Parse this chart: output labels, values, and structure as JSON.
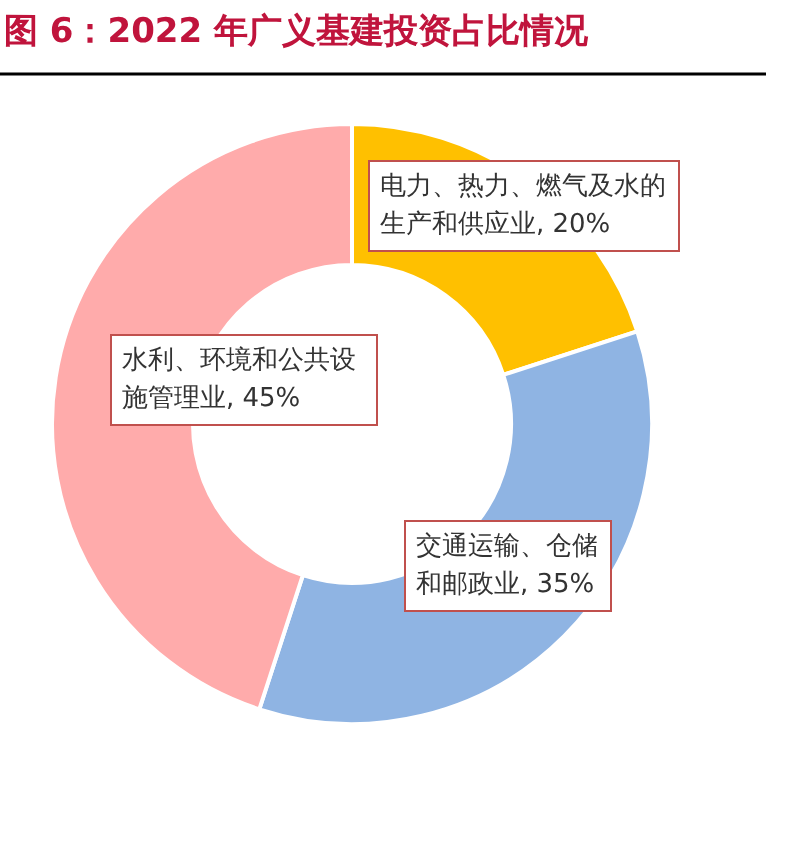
{
  "chart_data": {
    "type": "donut",
    "title": "图 6：2022 年广义基建投资占比情况",
    "categories": [
      "电力、热力、燃气及水的生产和供应业",
      "交通运输、仓储和邮政业",
      "水利、环境和公共设施管理业"
    ],
    "values": [
      20,
      35,
      45
    ],
    "value_labels": [
      "20%",
      "35%",
      "45%"
    ],
    "colors": [
      "#ffc000",
      "#8fb4e3",
      "#ffabab"
    ]
  }
}
